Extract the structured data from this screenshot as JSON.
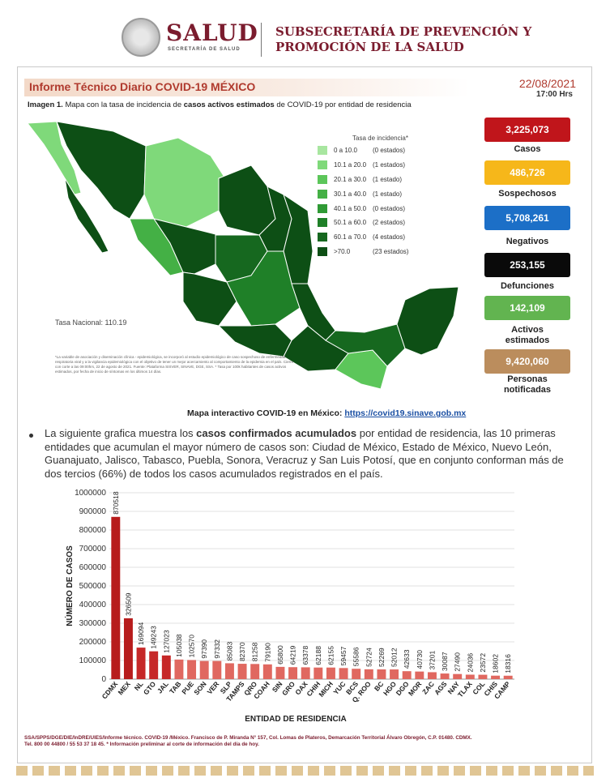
{
  "header": {
    "brand": "SALUD",
    "brand_sub": "SECRETARÍA DE SALUD",
    "subsecretaria_line1": "SUBSECRETARÍA DE PREVENCIÓN Y",
    "subsecretaria_line2": "PROMOCIÓN DE LA SALUD"
  },
  "report": {
    "title": "Informe Técnico Diario COVID-19 MÉXICO",
    "date": "22/08/2021",
    "time": "17:00 Hrs",
    "caption_label": "Imagen 1.",
    "caption_text_1": " Mapa con la tasa de incidencia de ",
    "caption_bold": "casos activos estimados",
    "caption_text_2": " de COVID-19 por entidad de residencia"
  },
  "map": {
    "legend_title": "Tasa de incidencia*",
    "legend": [
      {
        "range": "0   a  10.0",
        "count": "(0 estados)",
        "color": "#a8e6a0"
      },
      {
        "range": "10.1 a 20.0",
        "count": "(1 estados)",
        "color": "#7fd97a"
      },
      {
        "range": "20.1 a 30.0",
        "count": "(1 estado)",
        "color": "#5cc65a"
      },
      {
        "range": "30.1 a 40.0",
        "count": "(1 estado)",
        "color": "#44b045"
      },
      {
        "range": "40.1 a 50.0",
        "count": "(0 estados)",
        "color": "#2f9a35"
      },
      {
        "range": "50.1 a 60.0",
        "count": "(2 estados)",
        "color": "#1f8028"
      },
      {
        "range": "60.1 a 70.0",
        "count": "(4 estados)",
        "color": "#16681f"
      },
      {
        "range": ">70.0",
        "count": "(23 estados)",
        "color": "#0d4f15"
      }
    ],
    "tasa_nacional": "Tasa Nacional: 110.19",
    "footnote": "*La variable de asociación y diseminación clínica - epidemiológica, se incorporó al estudio epidemiológico de caso sospechoso de enfermedad respiratoria viral y a la vigilancia epidemiológica con el objetivo de tener un mejor acercamiento al comportamiento de la epidemia en el país. Cierre con corte a las 09:00hrs, 22 de agosto de 2021. Fuente: Plataforma SISVER, SINAVE, DGE, SSA. * Tasa por 100k habitantes de casos activos estimados, por fecha de inicio de síntomas en los últimos 14 días."
  },
  "stats": [
    {
      "value": "3,225,073",
      "label": "Casos",
      "color": "#c0151b"
    },
    {
      "value": "486,726",
      "label": "Sospechosos",
      "color": "#f6b71a"
    },
    {
      "value": "5,708,261",
      "label": "Negativos",
      "color": "#1c6fc7"
    },
    {
      "value": "253,155",
      "label": "Defunciones",
      "color": "#0a0a0a"
    },
    {
      "value": "142,109",
      "label": "Activos estimados",
      "color": "#62b450"
    },
    {
      "value": "9,420,060",
      "label": "Personas notificadas",
      "color": "#bb8d5d"
    }
  ],
  "interactive": {
    "label": "Mapa interactivo COVID-19 en México: ",
    "url": "https://covid19.sinave.gob.mx"
  },
  "paragraph": {
    "p1": "La siguiente grafica muestra los ",
    "bold": "casos confirmados acumulados",
    "p2": " por entidad de residencia, las 10 primeras entidades que acumulan el mayor número de casos son: Ciudad de México, Estado de México, Nuevo León, Guanajuato, Jalisco, Tabasco, Puebla, Sonora, Veracruz y San Luis Potosí, que en conjunto conforman más de dos tercios (66%) de todos los casos acumulados registrados en el país."
  },
  "chart_data": {
    "type": "bar",
    "xlabel": "ENTIDAD DE RESIDENCIA",
    "ylabel": "NÚMERO DE CASOS",
    "ylim": [
      0,
      1000000
    ],
    "yticks": [
      "0",
      "100000",
      "200000",
      "300000",
      "400000",
      "500000",
      "600000",
      "700000",
      "800000",
      "900000",
      "1000000"
    ],
    "categories": [
      "CDMX",
      "MEX",
      "NL",
      "GTO",
      "JAL",
      "TAB",
      "PUE",
      "SON",
      "VER",
      "SLP",
      "TAMPS",
      "QRO",
      "COAH",
      "SIN",
      "GRO",
      "OAX",
      "CHIH",
      "MICH",
      "YUC",
      "BCS",
      "Q. ROO",
      "BC",
      "HGO",
      "DGO",
      "MOR",
      "ZAC",
      "AGS",
      "NAY",
      "TLAX",
      "COL",
      "CHIS",
      "CAMP"
    ],
    "values": [
      870518,
      326509,
      169094,
      149243,
      127023,
      105038,
      102570,
      97390,
      97332,
      85083,
      82370,
      81258,
      79190,
      65800,
      64219,
      63378,
      62188,
      62155,
      59457,
      55586,
      52724,
      52269,
      52012,
      42633,
      40730,
      37201,
      30087,
      27490,
      24036,
      23572,
      18602,
      18316
    ],
    "labels": [
      "870518",
      "326509",
      "169094",
      "149243",
      "127023",
      "105038",
      "102570",
      "97390",
      "97332",
      "85083",
      "82370",
      "81258",
      "79190",
      "65800",
      "64219",
      "63378",
      "62188",
      "62155",
      "59457",
      "55586",
      "52724",
      "52269",
      "52012",
      "42633",
      "40730",
      "37201",
      "30087",
      "27490",
      "24036",
      "23572",
      "18602",
      "18316"
    ],
    "colors": [
      "#b71c1c",
      "#b71c1c",
      "#c62828",
      "#c62828",
      "#c62828",
      "#e06860",
      "#e06860",
      "#e06860",
      "#e06860",
      "#e06860",
      "#e06860",
      "#e06860",
      "#e06860",
      "#e06860",
      "#e06860",
      "#e06860",
      "#e06860",
      "#e06860",
      "#e06860",
      "#e06860",
      "#e06860",
      "#e06860",
      "#e06860",
      "#e06860",
      "#e06860",
      "#e06860",
      "#e06860",
      "#e06860",
      "#e06860",
      "#e06860",
      "#e06860",
      "#e06860"
    ],
    "grid": true,
    "legend": "none"
  },
  "footer": {
    "line1": "SSA/SPPS/DGE/DIE/InDRE/UIES/Informe técnico. COVID-19 /México. Francisco de P. Miranda N° 157, Col. Lomas de Plateros, Demarcación Territorial Álvaro Obregón, C.P. 01480. CDMX.",
    "line2": "Tel. 800 00 44800 / 55 53 37 18 45. * Información preliminar al corte de información del día de hoy."
  }
}
